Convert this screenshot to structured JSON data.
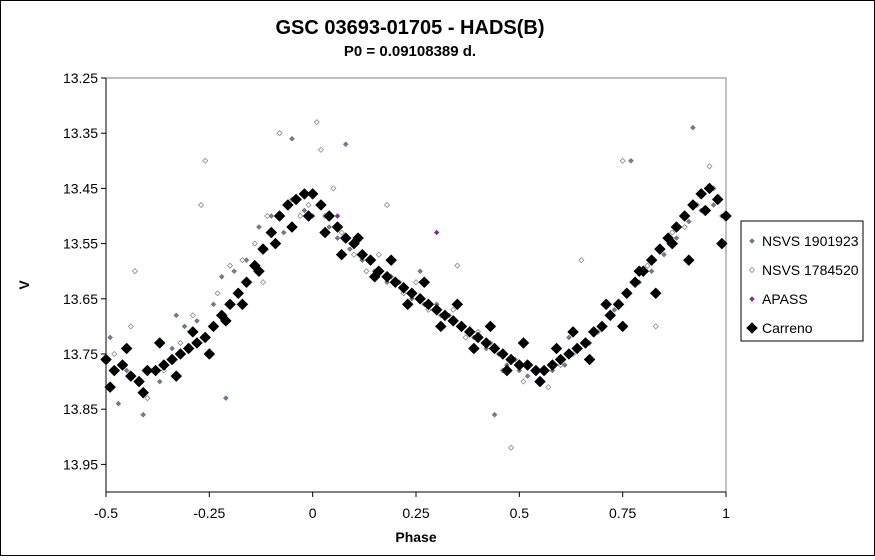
{
  "chart_data": {
    "type": "scatter",
    "title": "GSC 03693-01705  - HADS(B)",
    "subtitle": "P0 = 0.09108389 d.",
    "xlabel": "Phase",
    "ylabel": "V",
    "xlim": [
      -0.5,
      1
    ],
    "ylim": [
      13.25,
      14.0
    ],
    "y_inverted": true,
    "grid": false,
    "legend_placement": "right",
    "x_ticks": [
      "-0.5",
      "-0.25",
      "0",
      "0.25",
      "0.5",
      "0.75",
      "1"
    ],
    "y_ticks": [
      "13.25",
      "13.35",
      "13.45",
      "13.55",
      "13.65",
      "13.75",
      "13.85",
      "13.95"
    ],
    "series": [
      {
        "name": "NSVS 1901923",
        "color": "#6b7f99",
        "marker": "diamond-small",
        "x": [
          -0.49,
          -0.45,
          -0.41,
          -0.37,
          -0.34,
          -0.31,
          -0.28,
          -0.24,
          -0.22,
          -0.19,
          -0.16,
          -0.13,
          -0.1,
          -0.07,
          -0.04,
          -0.02,
          0.0,
          0.02,
          0.04,
          0.06,
          0.09,
          0.12,
          0.15,
          0.18,
          0.21,
          0.24,
          0.27,
          0.3,
          0.33,
          0.36,
          0.39,
          0.42,
          0.45,
          0.47,
          0.5,
          0.52,
          0.55,
          0.58,
          0.61,
          0.64,
          0.67,
          0.7,
          0.73,
          0.76,
          0.79,
          0.82,
          0.85,
          0.88,
          0.91,
          0.94,
          0.97,
          0.99,
          -0.47,
          -0.33,
          -0.21,
          -0.05,
          0.08,
          0.26,
          0.44,
          0.62,
          0.77,
          0.92
        ],
        "y": [
          13.72,
          13.78,
          13.86,
          13.8,
          13.74,
          13.7,
          13.69,
          13.66,
          13.61,
          13.6,
          13.58,
          13.52,
          13.5,
          13.53,
          13.47,
          13.49,
          13.5,
          13.48,
          13.52,
          13.54,
          13.56,
          13.58,
          13.6,
          13.62,
          13.62,
          13.65,
          13.66,
          13.66,
          13.68,
          13.7,
          13.72,
          13.74,
          13.75,
          13.77,
          13.78,
          13.79,
          13.8,
          13.78,
          13.77,
          13.74,
          13.73,
          13.7,
          13.67,
          13.64,
          13.62,
          13.6,
          13.57,
          13.54,
          13.51,
          13.49,
          13.48,
          13.5,
          13.84,
          13.68,
          13.83,
          13.36,
          13.37,
          13.6,
          13.86,
          13.72,
          13.4,
          13.34
        ]
      },
      {
        "name": "NSVS 1784520",
        "color": "#8a8a8a",
        "marker": "diamond-small-open",
        "x": [
          -0.48,
          -0.44,
          -0.4,
          -0.36,
          -0.32,
          -0.29,
          -0.26,
          -0.23,
          -0.2,
          -0.17,
          -0.14,
          -0.11,
          -0.08,
          -0.05,
          -0.03,
          -0.01,
          0.01,
          0.03,
          0.05,
          0.07,
          0.1,
          0.13,
          0.16,
          0.19,
          0.22,
          0.25,
          0.28,
          0.31,
          0.34,
          0.37,
          0.4,
          0.43,
          0.46,
          0.49,
          0.51,
          0.54,
          0.57,
          0.6,
          0.63,
          0.66,
          0.69,
          0.72,
          0.75,
          0.78,
          0.81,
          0.84,
          0.87,
          0.9,
          0.93,
          0.96,
          0.98,
          -0.43,
          -0.27,
          -0.12,
          0.02,
          0.18,
          0.35,
          0.48,
          0.65,
          0.83,
          0.97
        ],
        "y": [
          13.75,
          13.7,
          13.83,
          13.78,
          13.73,
          13.68,
          13.4,
          13.64,
          13.59,
          13.58,
          13.55,
          13.5,
          13.35,
          13.47,
          13.5,
          13.48,
          13.33,
          13.5,
          13.45,
          13.53,
          13.57,
          13.6,
          13.57,
          13.61,
          13.64,
          13.62,
          13.67,
          13.68,
          13.67,
          13.72,
          13.71,
          13.73,
          13.78,
          13.76,
          13.8,
          13.78,
          13.81,
          13.77,
          13.75,
          13.73,
          13.71,
          13.68,
          13.4,
          13.62,
          13.59,
          13.56,
          13.53,
          13.52,
          13.48,
          13.41,
          13.47,
          13.6,
          13.48,
          13.62,
          13.38,
          13.48,
          13.59,
          13.92,
          13.58,
          13.7,
          13.45
        ]
      },
      {
        "name": "APASS",
        "color": "#a01a9a",
        "marker": "diamond-small",
        "x": [
          0.3,
          0.06
        ],
        "y": [
          13.53,
          13.5
        ]
      },
      {
        "name": "Carreno",
        "color": "#000000",
        "marker": "diamond-large",
        "x": [
          -0.5,
          -0.48,
          -0.46,
          -0.44,
          -0.42,
          -0.4,
          -0.38,
          -0.36,
          -0.34,
          -0.32,
          -0.3,
          -0.28,
          -0.26,
          -0.24,
          -0.22,
          -0.2,
          -0.18,
          -0.16,
          -0.14,
          -0.12,
          -0.1,
          -0.08,
          -0.06,
          -0.04,
          -0.02,
          0.0,
          0.02,
          0.04,
          0.06,
          0.08,
          0.1,
          0.12,
          0.14,
          0.16,
          0.18,
          0.2,
          0.22,
          0.24,
          0.26,
          0.28,
          0.3,
          0.32,
          0.34,
          0.36,
          0.38,
          0.4,
          0.42,
          0.44,
          0.46,
          0.48,
          0.5,
          0.52,
          0.54,
          0.56,
          0.58,
          0.6,
          0.62,
          0.64,
          0.66,
          0.68,
          0.7,
          0.72,
          0.74,
          0.76,
          0.78,
          0.8,
          0.82,
          0.84,
          0.86,
          0.88,
          0.9,
          0.92,
          0.94,
          0.96,
          0.98,
          1.0,
          -0.49,
          -0.45,
          -0.41,
          -0.37,
          -0.33,
          -0.29,
          -0.25,
          -0.21,
          -0.17,
          -0.13,
          -0.09,
          -0.05,
          -0.01,
          0.03,
          0.07,
          0.11,
          0.15,
          0.19,
          0.23,
          0.27,
          0.31,
          0.35,
          0.39,
          0.43,
          0.47,
          0.51,
          0.55,
          0.59,
          0.63,
          0.67,
          0.71,
          0.75,
          0.79,
          0.83,
          0.87,
          0.91,
          0.95,
          0.99
        ],
        "y": [
          13.76,
          13.78,
          13.77,
          13.79,
          13.8,
          13.78,
          13.78,
          13.77,
          13.76,
          13.75,
          13.74,
          13.73,
          13.72,
          13.7,
          13.68,
          13.66,
          13.64,
          13.62,
          13.59,
          13.56,
          13.53,
          13.5,
          13.48,
          13.47,
          13.46,
          13.46,
          13.48,
          13.5,
          13.52,
          13.54,
          13.55,
          13.57,
          13.58,
          13.6,
          13.61,
          13.62,
          13.63,
          13.64,
          13.65,
          13.66,
          13.67,
          13.68,
          13.69,
          13.7,
          13.71,
          13.72,
          13.73,
          13.74,
          13.75,
          13.76,
          13.77,
          13.77,
          13.78,
          13.78,
          13.77,
          13.76,
          13.75,
          13.74,
          13.73,
          13.71,
          13.7,
          13.68,
          13.66,
          13.64,
          13.62,
          13.6,
          13.58,
          13.56,
          13.54,
          13.52,
          13.5,
          13.48,
          13.46,
          13.45,
          13.47,
          13.5,
          13.81,
          13.74,
          13.82,
          13.73,
          13.79,
          13.71,
          13.75,
          13.69,
          13.66,
          13.6,
          13.55,
          13.52,
          13.5,
          13.53,
          13.57,
          13.54,
          13.61,
          13.58,
          13.66,
          13.62,
          13.7,
          13.66,
          13.74,
          13.7,
          13.78,
          13.73,
          13.8,
          13.74,
          13.71,
          13.76,
          13.66,
          13.7,
          13.6,
          13.64,
          13.55,
          13.58,
          13.49,
          13.55
        ]
      }
    ]
  }
}
